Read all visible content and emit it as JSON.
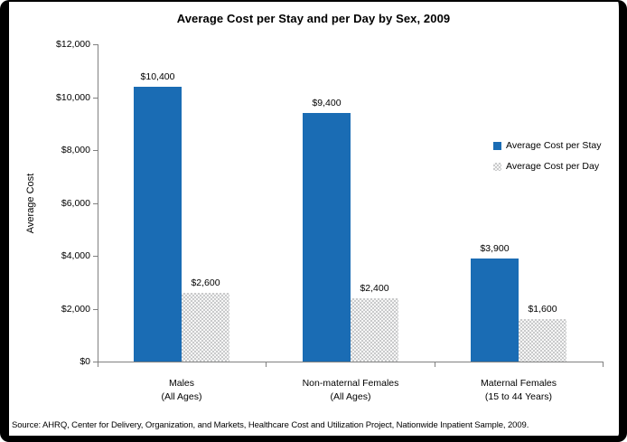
{
  "chart_data": {
    "type": "bar",
    "title": "Average Cost per Stay and per Day by Sex, 2009",
    "ylabel": "Average Cost",
    "xlabel": "",
    "categories": [
      {
        "label": "Males",
        "sublabel": "(All Ages)"
      },
      {
        "label": "Non-maternal Females",
        "sublabel": "(All Ages)"
      },
      {
        "label": "Maternal Females",
        "sublabel": "(15 to 44 Years)"
      }
    ],
    "series": [
      {
        "name": "Average Cost per Stay",
        "color": "#1A6CB4",
        "pattern": "solid",
        "values": [
          10400,
          9400,
          3900
        ],
        "data_labels": [
          "$10,400",
          "$9,400",
          "$3,900"
        ]
      },
      {
        "name": "Average Cost per Day",
        "color": "#C9CACB",
        "pattern": "dots",
        "values": [
          2600,
          2400,
          1600
        ],
        "data_labels": [
          "$2,600",
          "$2,400",
          "$1,600"
        ]
      }
    ],
    "ylim": [
      0,
      12000
    ],
    "ytick_step": 2000,
    "ytick_labels": [
      "$0",
      "$2,000",
      "$4,000",
      "$6,000",
      "$8,000",
      "$10,000",
      "$12,000"
    ],
    "grid": false,
    "legend_position": "right-middle"
  },
  "source_note": "Source: AHRQ, Center for Delivery, Organization, and Markets, Healthcare Cost and Utilization Project, Nationwide Inpatient Sample, 2009.",
  "colors": {
    "bar_blue": "#1A6CB4",
    "bar_gray": "#C9CACB",
    "axis_gray": "#808080",
    "text": "#000000",
    "frame": "#000000",
    "background": "#FFFFFF"
  }
}
